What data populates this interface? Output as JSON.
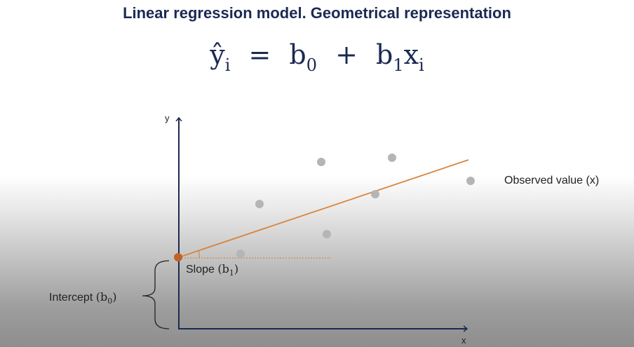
{
  "title": "Linear regression model. Geometrical representation",
  "equation": {
    "lhs": "ŷ",
    "lhs_sub": "i",
    "equals": "=",
    "b0": "b",
    "b0_sub": "0",
    "plus": "+",
    "b1": "b",
    "b1_sub": "1",
    "x": "x",
    "x_sub": "i"
  },
  "axes": {
    "y_label": "y",
    "x_label": "x"
  },
  "labels": {
    "observed": "Observed value (x)",
    "slope_text": "Slope ",
    "slope_open": "(",
    "slope_b": "b",
    "slope_sub": "1",
    "slope_close": ")",
    "intercept_text": "Intercept ",
    "intercept_open": "(",
    "intercept_b": "b",
    "intercept_sub": "0",
    "intercept_close": ")"
  },
  "colors": {
    "title": "#1b2a52",
    "axis": "#1b2a52",
    "regression_line": "#d9843c",
    "intercept_point": "#c0622a",
    "observed_point": "#b5b5b5"
  }
}
